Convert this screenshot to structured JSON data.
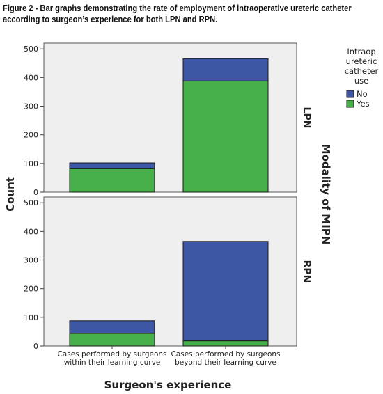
{
  "caption": {
    "line1": "Figure 2 - Bar graphs demonstrating the rate of employment of intraoperative ureteric catheter",
    "line2": "according to surgeon’s experience for both LPN and RPN."
  },
  "colors": {
    "No": "#3d57a5",
    "Yes": "#47b04a",
    "panel_bg": "#efefef"
  },
  "chart_data": {
    "type": "bar",
    "stacked": true,
    "xlabel": "Surgeon's experience",
    "ylabel": "Count",
    "facet_label": "Modality of MIPN",
    "ylim": [
      0,
      520
    ],
    "yticks": [
      0,
      100,
      200,
      300,
      400,
      500
    ],
    "categories": [
      [
        "Cases performed by surgeons",
        "within their learning curve"
      ],
      [
        "Cases performed by surgeons",
        "beyond their learning curve"
      ]
    ],
    "legend": {
      "title": [
        "Intraop",
        "ureteric",
        "catheter",
        "use"
      ],
      "entries": [
        "No",
        "Yes"
      ],
      "placement": "right"
    },
    "panels": [
      {
        "name": "LPN",
        "series": [
          {
            "name": "Yes",
            "values": [
              82,
              388
            ]
          },
          {
            "name": "No",
            "values": [
              20,
              78
            ]
          }
        ]
      },
      {
        "name": "RPN",
        "series": [
          {
            "name": "Yes",
            "values": [
              44,
              18
            ]
          },
          {
            "name": "No",
            "values": [
              44,
              347
            ]
          }
        ]
      }
    ]
  }
}
